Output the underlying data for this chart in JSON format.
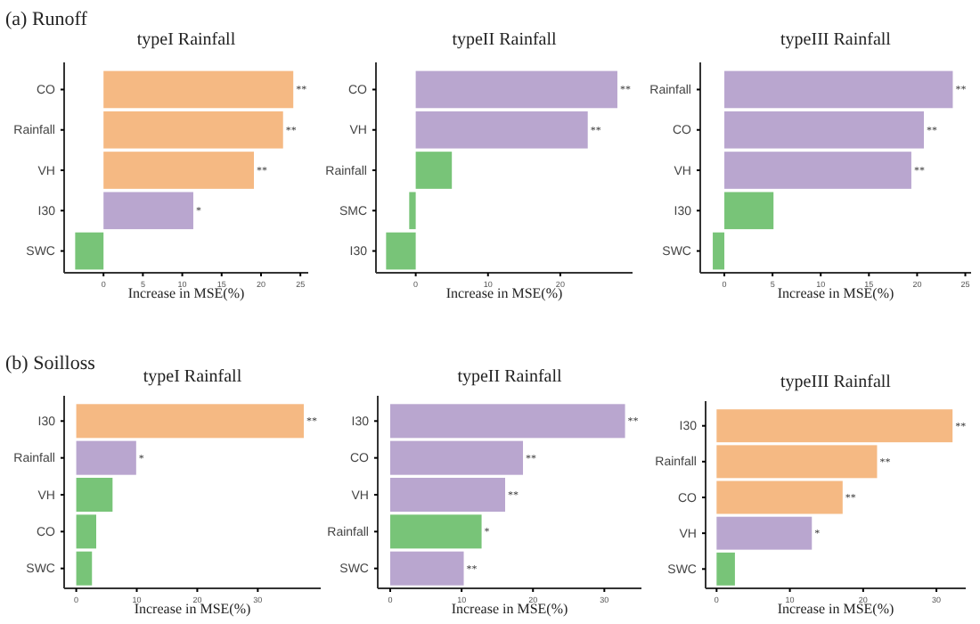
{
  "chart_data": [
    {
      "type": "bar",
      "orientation": "horizontal",
      "title": "typeI Rainfall",
      "xlabel": "Increase in MSE(%)",
      "annotations": [
        "(a) Runoff"
      ],
      "categories": [
        "CO",
        "Rainfall",
        "VH",
        "I30",
        "SWC"
      ],
      "values": [
        24.1,
        22.8,
        19.1,
        11.4,
        -3.6
      ],
      "colors": [
        "#f5b983",
        "#f5b983",
        "#f5b983",
        "#b9a6cf",
        "#78c478"
      ],
      "value_labels": [
        "**",
        "**",
        "**",
        "*",
        null
      ],
      "xlim": [
        -5,
        26
      ],
      "xticks": [
        0,
        5,
        10,
        15,
        20,
        25
      ]
    },
    {
      "type": "bar",
      "orientation": "horizontal",
      "title": "typeII Rainfall",
      "xlabel": "Increase in MSE(%)",
      "categories": [
        "CO",
        "VH",
        "Rainfall",
        "SMC",
        "I30"
      ],
      "values": [
        27.9,
        23.8,
        5.0,
        -0.9,
        -4.1
      ],
      "colors": [
        "#b9a6cf",
        "#b9a6cf",
        "#78c478",
        "#78c478",
        "#78c478"
      ],
      "value_labels": [
        "**",
        "**",
        null,
        null,
        null
      ],
      "xlim": [
        -5.5,
        30
      ],
      "xticks": [
        0,
        10,
        20
      ]
    },
    {
      "type": "bar",
      "orientation": "horizontal",
      "title": "typeIII Rainfall",
      "xlabel": "Increase in MSE(%)",
      "categories": [
        "Rainfall",
        "CO",
        "VH",
        "I30",
        "SWC"
      ],
      "values": [
        23.7,
        20.7,
        19.4,
        5.1,
        -1.2
      ],
      "colors": [
        "#b9a6cf",
        "#b9a6cf",
        "#b9a6cf",
        "#78c478",
        "#78c478"
      ],
      "value_labels": [
        "**",
        "**",
        "**",
        null,
        null
      ],
      "xlim": [
        -2.5,
        25.6
      ],
      "xticks": [
        0,
        5,
        10,
        15,
        20,
        25
      ]
    },
    {
      "type": "bar",
      "orientation": "horizontal",
      "title": "typeI Rainfall",
      "xlabel": "Increase in MSE(%)",
      "annotations": [
        "(b) Soilloss"
      ],
      "categories": [
        "I30",
        "Rainfall",
        "VH",
        "CO",
        "SWC"
      ],
      "values": [
        37.6,
        9.9,
        6.0,
        3.3,
        2.6
      ],
      "colors": [
        "#f5b983",
        "#b9a6cf",
        "#78c478",
        "#78c478",
        "#78c478"
      ],
      "value_labels": [
        "**",
        "*",
        null,
        null,
        null
      ],
      "xlim": [
        -2,
        40.4
      ],
      "xticks": [
        0,
        10,
        20,
        30
      ]
    },
    {
      "type": "bar",
      "orientation": "horizontal",
      "title": "typeII Rainfall",
      "xlabel": "Increase in MSE(%)",
      "categories": [
        "I30",
        "CO",
        "VH",
        "Rainfall",
        "SWC"
      ],
      "values": [
        32.9,
        18.6,
        16.1,
        12.8,
        10.3
      ],
      "colors": [
        "#b9a6cf",
        "#b9a6cf",
        "#b9a6cf",
        "#78c478",
        "#b9a6cf"
      ],
      "value_labels": [
        "**",
        "**",
        "**",
        "*",
        "**"
      ],
      "xlim": [
        -1.75,
        35.2
      ],
      "xticks": [
        0,
        10,
        20,
        30
      ]
    },
    {
      "type": "bar",
      "orientation": "horizontal",
      "title": "typeIII Rainfall",
      "xlabel": "Increase in MSE(%)",
      "categories": [
        "I30",
        "Rainfall",
        "CO",
        "VH",
        "SWC"
      ],
      "values": [
        32.2,
        21.9,
        17.2,
        13.0,
        2.5
      ],
      "colors": [
        "#f5b983",
        "#f5b983",
        "#f5b983",
        "#b9a6cf",
        "#78c478"
      ],
      "value_labels": [
        "**",
        "**",
        "**",
        "*",
        null
      ],
      "xlim": [
        -1.5,
        34
      ],
      "xticks": [
        0,
        10,
        20,
        30
      ]
    }
  ]
}
